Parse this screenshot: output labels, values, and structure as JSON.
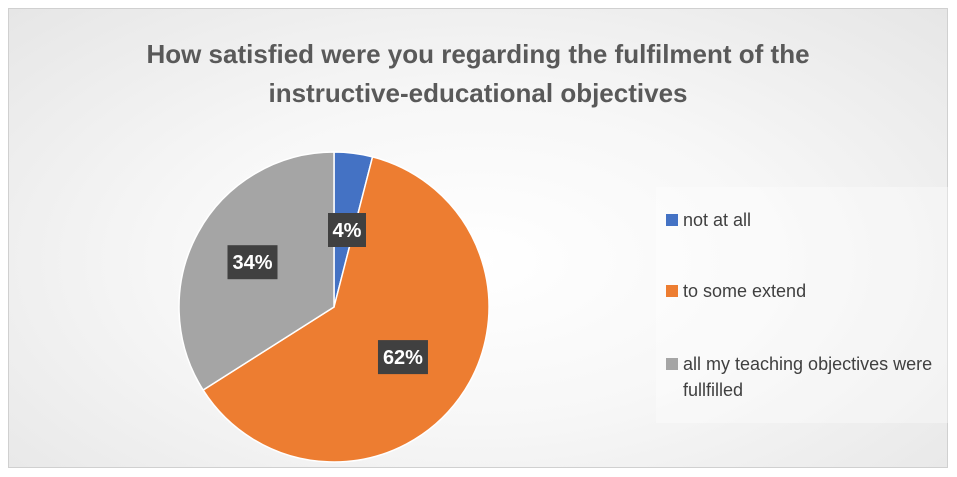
{
  "chart_data": {
    "type": "pie",
    "title": "How satisfied were you regarding the fulfilment of the instructive-educational objectives",
    "categories": [
      "not at all",
      "to some extend",
      "all my teaching objectives were fullfilled"
    ],
    "values": [
      4,
      62,
      34
    ],
    "data_labels": [
      "4%",
      "62%",
      "34%"
    ],
    "colors": [
      "#4472C4",
      "#ED7D31",
      "#A5A5A5"
    ],
    "legend_position": "right",
    "start_angle_deg": 0,
    "direction": "clockwise"
  }
}
